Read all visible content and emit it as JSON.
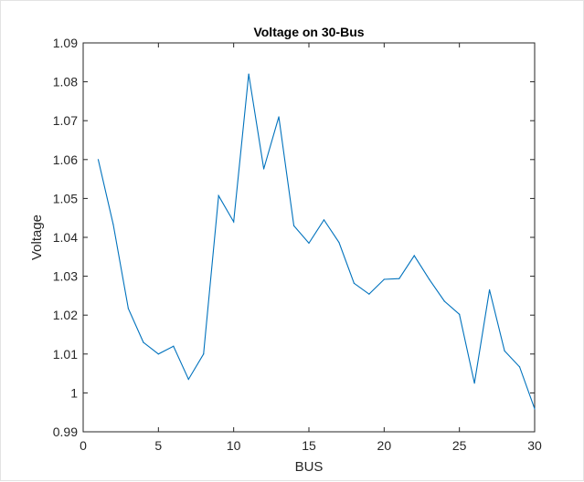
{
  "colors": {
    "series": "#0072bd",
    "axis": "#262626",
    "background": "#ffffff"
  },
  "chart_data": {
    "type": "line",
    "title": "Voltage on 30-Bus",
    "xlabel": "BUS",
    "ylabel": "Voltage",
    "xlim": [
      0,
      30
    ],
    "ylim": [
      0.99,
      1.09
    ],
    "grid": false,
    "xticks": [
      "0",
      "5",
      "10",
      "15",
      "20",
      "25",
      "30"
    ],
    "yticks": [
      "0.99",
      "1",
      "1.01",
      "1.02",
      "1.03",
      "1.04",
      "1.05",
      "1.06",
      "1.07",
      "1.08",
      "1.09"
    ],
    "x": [
      1,
      2,
      3,
      4,
      5,
      6,
      7,
      8,
      9,
      10,
      11,
      12,
      13,
      14,
      15,
      16,
      17,
      18,
      19,
      20,
      21,
      22,
      23,
      24,
      25,
      26,
      27,
      28,
      29,
      30
    ],
    "y": [
      1.06,
      1.0433,
      1.0217,
      1.013,
      1.01,
      1.012,
      1.0035,
      1.01,
      1.0507,
      1.044,
      1.082,
      1.0576,
      1.071,
      1.043,
      1.0385,
      1.0445,
      1.0387,
      1.0282,
      1.0254,
      1.0292,
      1.0294,
      1.0353,
      1.0292,
      1.0236,
      1.0202,
      1.0025,
      1.0265,
      1.0108,
      1.0067,
      0.9959
    ]
  }
}
